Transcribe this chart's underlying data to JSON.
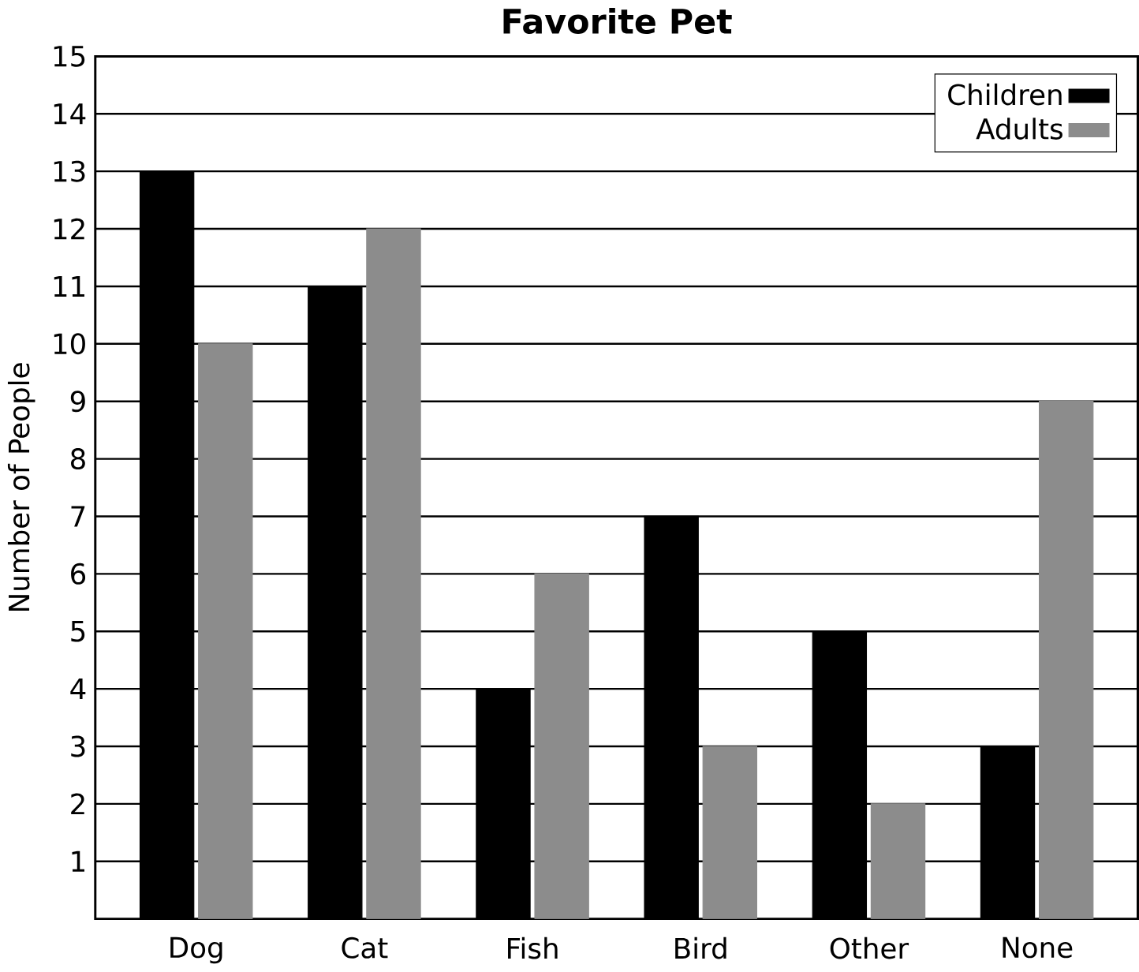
{
  "chart_data": {
    "type": "bar",
    "title": "Favorite Pet",
    "ylabel": "Number of People",
    "categories": [
      "Dog",
      "Cat",
      "Fish",
      "Bird",
      "Other",
      "None"
    ],
    "series": [
      {
        "name": "Children",
        "color": "#000000",
        "values": [
          13,
          11,
          4,
          7,
          5,
          3
        ]
      },
      {
        "name": "Adults",
        "color": "#8c8c8c",
        "values": [
          10,
          12,
          6,
          3,
          2,
          9
        ]
      }
    ],
    "ylim": [
      0,
      15
    ],
    "yticks": [
      1,
      2,
      3,
      4,
      5,
      6,
      7,
      8,
      9,
      10,
      11,
      12,
      13,
      14,
      15
    ],
    "grid": "y",
    "legend": "top right"
  }
}
